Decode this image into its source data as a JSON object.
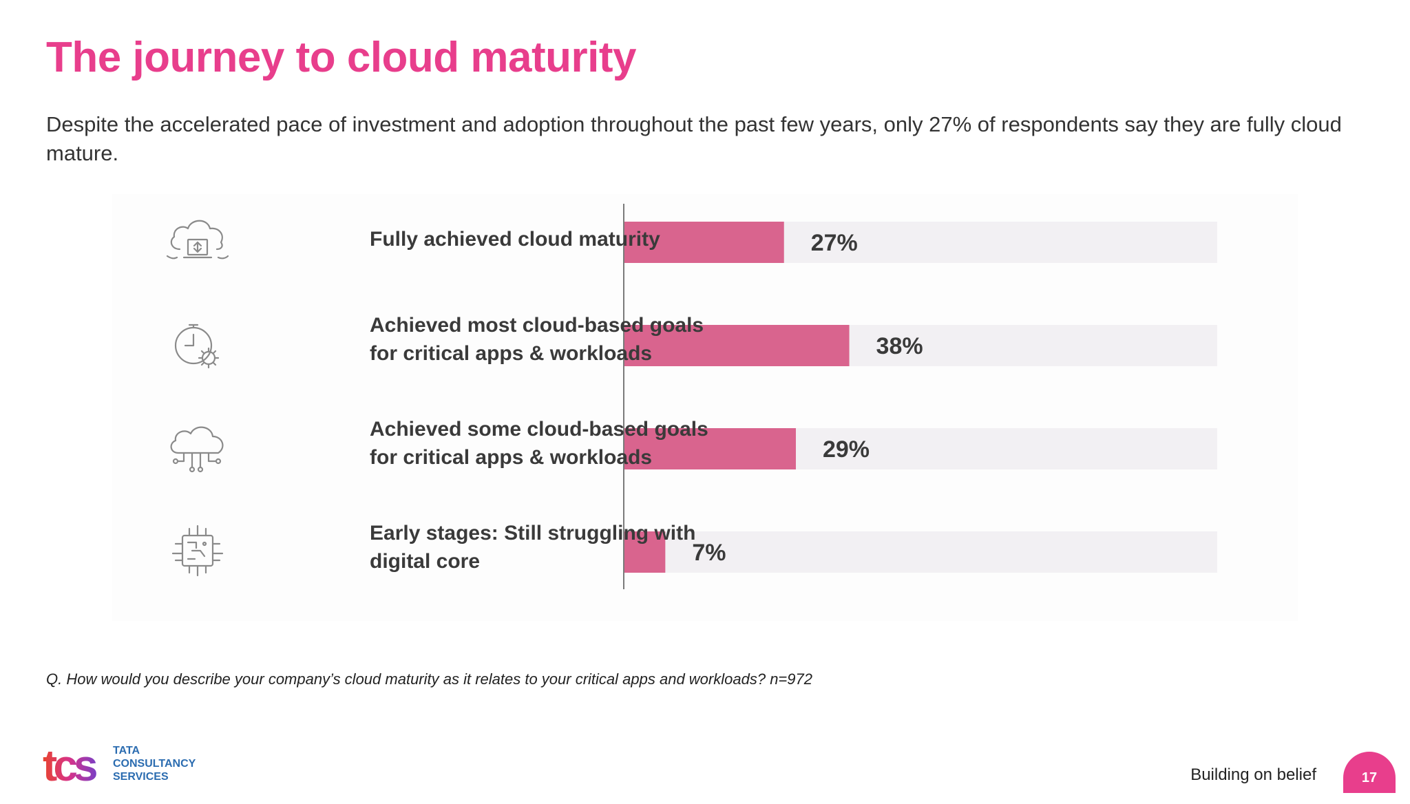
{
  "slide": {
    "title": "The journey to cloud maturity",
    "subtitle": "Despite the accelerated pace of investment and adoption throughout the past few years, only 27% of respondents say they are fully cloud mature.",
    "footnote": "Q. How would you describe your company’s cloud maturity as it relates to your critical apps and workloads? n=972",
    "tagline": "Building on belief",
    "page_number": "17",
    "logo": {
      "mark": "tcs",
      "line1": "TATA",
      "line2": "CONSULTANCY",
      "line3": "SERVICES"
    }
  },
  "colors": {
    "accent": "#e83e8c",
    "bar": "#d9648e",
    "track": "#f2f0f3",
    "text": "#3a3a3a"
  },
  "rows": [
    {
      "label_lines": [
        "Fully achieved cloud maturity"
      ],
      "icon": "cloud-laptop-icon"
    },
    {
      "label_lines": [
        "Achieved most cloud-based goals",
        "for critical apps & workloads"
      ],
      "icon": "stopwatch-gear-icon"
    },
    {
      "label_lines": [
        "Achieved some cloud-based goals",
        "for critical apps & workloads"
      ],
      "icon": "cloud-network-icon"
    },
    {
      "label_lines": [
        "Early stages: Still struggling with",
        "digital core"
      ],
      "icon": "chip-icon"
    }
  ],
  "chart_data": {
    "type": "bar",
    "orientation": "horizontal",
    "categories": [
      "Fully achieved cloud maturity",
      "Achieved most cloud-based goals for critical apps & workloads",
      "Achieved some cloud-based goals for critical apps & workloads",
      "Early stages: Still struggling with digital core"
    ],
    "values": [
      27,
      38,
      29,
      7
    ],
    "value_labels": [
      "27%",
      "38%",
      "29%",
      "7%"
    ],
    "unit": "%",
    "xlim": [
      0,
      100
    ],
    "grid": false,
    "legend": "none"
  }
}
